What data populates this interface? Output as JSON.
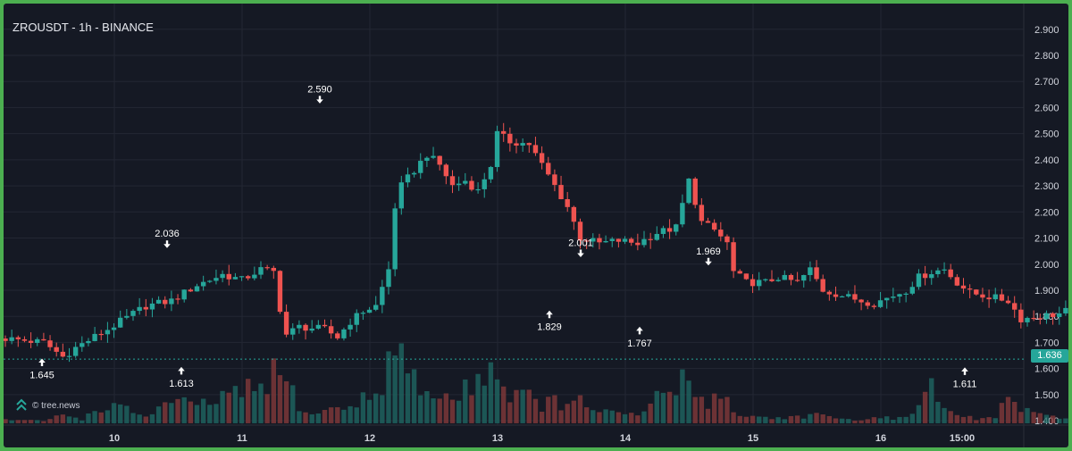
{
  "header": {
    "title": "ZROUSDT - 1h - BINANCE"
  },
  "watermark": {
    "text": "© tree.news",
    "icon": "tree-news-logo-icon"
  },
  "colors": {
    "up": "#26a69a",
    "down": "#ef5350",
    "background": "#151924",
    "grid": "#232733",
    "text": "#d1d4dc",
    "frame": "#4caf50"
  },
  "chart_data": {
    "type": "candlestick",
    "title": "ZROUSDT - 1h - BINANCE",
    "xlabel": "",
    "ylabel": "",
    "ylim": [
      1.39,
      2.93
    ],
    "y_ticks": [
      "1.400",
      "1.500",
      "1.600",
      "1.700",
      "1.800",
      "1.900",
      "2.000",
      "2.100",
      "2.200",
      "2.300",
      "2.400",
      "2.500",
      "2.600",
      "2.700",
      "2.800",
      "2.900"
    ],
    "x_ticks": [
      "10",
      "11",
      "12",
      "13",
      "14",
      "15",
      "16",
      "15:00"
    ],
    "grid": true,
    "last_price": "1.636",
    "annotations": [
      {
        "label": "2.036",
        "kind": "high",
        "price": 2.036
      },
      {
        "label": "2.590",
        "kind": "high",
        "price": 2.59
      },
      {
        "label": "2.001",
        "kind": "high",
        "price": 2.001
      },
      {
        "label": "1.969",
        "kind": "high",
        "price": 1.969
      },
      {
        "label": "1.645",
        "kind": "low",
        "price": 1.645
      },
      {
        "label": "1.613",
        "kind": "low",
        "price": 1.613
      },
      {
        "label": "1.829",
        "kind": "low",
        "price": 1.829
      },
      {
        "label": "1.767",
        "kind": "low",
        "price": 1.767
      },
      {
        "label": "1.611",
        "kind": "low",
        "price": 1.611
      }
    ],
    "close_path": [
      [
        0,
        1.715
      ],
      [
        6,
        1.7
      ],
      [
        9,
        1.645
      ],
      [
        11,
        1.68
      ],
      [
        16,
        1.75
      ],
      [
        22,
        1.84
      ],
      [
        26,
        1.86
      ],
      [
        30,
        1.92
      ],
      [
        34,
        1.96
      ],
      [
        37,
        1.94
      ],
      [
        40,
        1.98
      ],
      [
        42,
        1.97
      ],
      [
        43,
        1.83
      ],
      [
        44,
        1.73
      ],
      [
        46,
        1.76
      ],
      [
        50,
        1.75
      ],
      [
        52,
        1.72
      ],
      [
        54,
        1.78
      ],
      [
        56,
        1.82
      ],
      [
        58,
        1.84
      ],
      [
        60,
        1.98
      ],
      [
        61,
        2.22
      ],
      [
        62,
        2.3
      ],
      [
        64,
        2.36
      ],
      [
        66,
        2.42
      ],
      [
        68,
        2.38
      ],
      [
        70,
        2.3
      ],
      [
        72,
        2.32
      ],
      [
        74,
        2.28
      ],
      [
        76,
        2.38
      ],
      [
        77,
        2.5
      ],
      [
        79,
        2.47
      ],
      [
        82,
        2.46
      ],
      [
        84,
        2.38
      ],
      [
        86,
        2.3
      ],
      [
        88,
        2.22
      ],
      [
        90,
        2.1
      ],
      [
        93,
        2.08
      ],
      [
        96,
        2.09
      ],
      [
        99,
        2.08
      ],
      [
        102,
        2.12
      ],
      [
        105,
        2.14
      ],
      [
        107,
        2.32
      ],
      [
        109,
        2.16
      ],
      [
        111,
        2.13
      ],
      [
        113,
        2.08
      ],
      [
        114,
        1.97
      ],
      [
        116,
        1.93
      ],
      [
        119,
        1.93
      ],
      [
        121,
        1.95
      ],
      [
        124,
        1.93
      ],
      [
        126,
        1.98
      ],
      [
        128,
        1.9
      ],
      [
        131,
        1.88
      ],
      [
        134,
        1.86
      ],
      [
        136,
        1.85
      ],
      [
        138,
        1.87
      ],
      [
        141,
        1.9
      ],
      [
        143,
        1.95
      ],
      [
        145,
        1.97
      ],
      [
        147,
        1.98
      ],
      [
        149,
        1.93
      ],
      [
        151,
        1.89
      ],
      [
        153,
        1.88
      ],
      [
        155,
        1.87
      ],
      [
        157,
        1.86
      ],
      [
        159,
        1.79
      ],
      [
        162,
        1.8
      ],
      [
        165,
        1.81
      ],
      [
        167,
        1.83
      ],
      [
        169,
        1.87
      ],
      [
        171,
        1.92
      ],
      [
        173,
        1.88
      ],
      [
        175,
        1.95
      ],
      [
        177,
        1.93
      ],
      [
        179,
        1.91
      ],
      [
        182,
        1.91
      ],
      [
        185,
        1.9
      ],
      [
        187,
        1.88
      ],
      [
        190,
        1.88
      ],
      [
        193,
        1.87
      ],
      [
        196,
        1.91
      ],
      [
        198,
        1.89
      ],
      [
        200,
        1.89
      ],
      [
        202,
        1.87
      ],
      [
        204,
        1.9
      ],
      [
        206,
        1.84
      ],
      [
        208,
        1.82
      ],
      [
        210,
        1.81
      ],
      [
        213,
        1.8
      ],
      [
        216,
        1.78
      ],
      [
        219,
        1.75
      ],
      [
        222,
        1.72
      ],
      [
        224,
        1.7
      ],
      [
        226,
        1.69
      ],
      [
        228,
        1.68
      ],
      [
        231,
        1.67
      ],
      [
        234,
        1.67
      ],
      [
        236,
        1.65
      ],
      [
        238,
        1.63
      ],
      [
        240,
        1.64
      ]
    ],
    "volume_profile": [
      [
        0,
        0.05
      ],
      [
        6,
        0.03
      ],
      [
        9,
        0.12
      ],
      [
        12,
        0.06
      ],
      [
        16,
        0.25
      ],
      [
        22,
        0.1
      ],
      [
        26,
        0.3
      ],
      [
        30,
        0.22
      ],
      [
        34,
        0.35
      ],
      [
        37,
        0.4
      ],
      [
        40,
        0.5
      ],
      [
        42,
        0.65
      ],
      [
        44,
        0.55
      ],
      [
        47,
        0.12
      ],
      [
        50,
        0.18
      ],
      [
        53,
        0.2
      ],
      [
        56,
        0.32
      ],
      [
        58,
        0.4
      ],
      [
        60,
        0.8
      ],
      [
        62,
        0.96
      ],
      [
        64,
        0.55
      ],
      [
        66,
        0.38
      ],
      [
        68,
        0.42
      ],
      [
        70,
        0.3
      ],
      [
        72,
        0.45
      ],
      [
        74,
        0.62
      ],
      [
        76,
        0.88
      ],
      [
        78,
        0.45
      ],
      [
        80,
        0.4
      ],
      [
        82,
        0.35
      ],
      [
        84,
        0.25
      ],
      [
        86,
        0.3
      ],
      [
        88,
        0.22
      ],
      [
        90,
        0.28
      ],
      [
        93,
        0.18
      ],
      [
        96,
        0.12
      ],
      [
        99,
        0.1
      ],
      [
        102,
        0.35
      ],
      [
        104,
        0.45
      ],
      [
        106,
        0.55
      ],
      [
        108,
        0.4
      ],
      [
        110,
        0.3
      ],
      [
        112,
        0.45
      ],
      [
        114,
        0.15
      ],
      [
        116,
        0.1
      ],
      [
        120,
        0.07
      ],
      [
        124,
        0.09
      ],
      [
        127,
        0.12
      ],
      [
        130,
        0.05
      ],
      [
        134,
        0.06
      ],
      [
        138,
        0.07
      ],
      [
        142,
        0.1
      ],
      [
        144,
        0.62
      ],
      [
        146,
        0.28
      ],
      [
        148,
        0.12
      ],
      [
        152,
        0.06
      ],
      [
        155,
        0.08
      ],
      [
        157,
        0.35
      ],
      [
        159,
        0.18
      ],
      [
        162,
        0.1
      ],
      [
        165,
        0.08
      ],
      [
        167,
        0.12
      ],
      [
        169,
        0.22
      ],
      [
        171,
        0.15
      ],
      [
        173,
        0.08
      ],
      [
        176,
        0.1
      ],
      [
        179,
        0.06
      ],
      [
        182,
        0.05
      ],
      [
        186,
        0.04
      ],
      [
        190,
        0.05
      ],
      [
        193,
        0.08
      ],
      [
        196,
        0.05
      ],
      [
        200,
        0.07
      ],
      [
        202,
        0.05
      ],
      [
        204,
        0.35
      ],
      [
        206,
        0.12
      ],
      [
        208,
        0.08
      ],
      [
        211,
        0.05
      ],
      [
        214,
        0.1
      ],
      [
        217,
        0.06
      ],
      [
        220,
        0.08
      ],
      [
        224,
        0.1
      ],
      [
        228,
        0.06
      ],
      [
        232,
        0.07
      ],
      [
        236,
        0.12
      ],
      [
        238,
        0.05
      ],
      [
        240,
        0.03
      ]
    ]
  }
}
